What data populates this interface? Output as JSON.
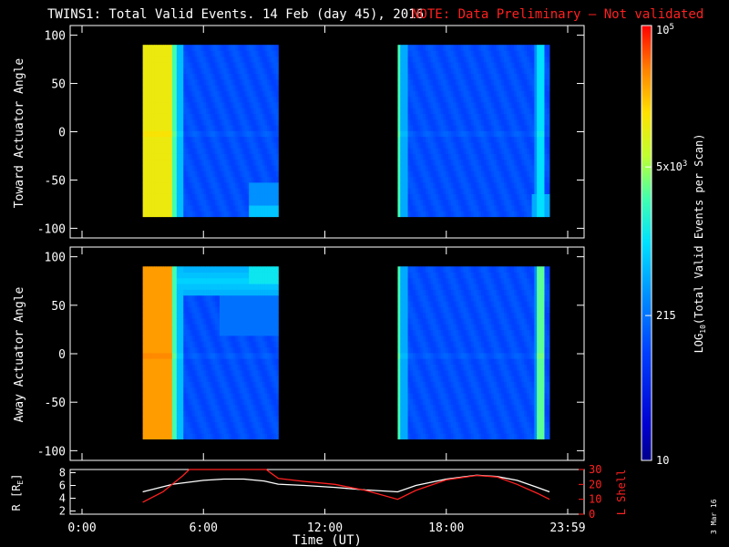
{
  "header": {
    "title": "TWINS1: Total Valid Events. 14 Feb (day  45), 2016",
    "note": "NOTE: Data Preliminary – Not validated",
    "note_color": "#ff2020"
  },
  "stamp": "3 Mar 16",
  "chart_data": [
    {
      "type": "heatmap",
      "panel": "top",
      "ylabel": "Toward Actuator Angle",
      "ylim": [
        -110,
        110
      ],
      "y_ticks": [
        100,
        50,
        0,
        -50,
        -100
      ],
      "x_ticks": [
        "0:00",
        "6:00",
        "12:00",
        "18:00",
        "23:59"
      ],
      "xlim_hours": [
        0,
        24
      ],
      "data_blocks_hours": [
        [
          3.0,
          9.7
        ],
        [
          15.6,
          23.1
        ]
      ],
      "data_angle_range": [
        -88,
        90
      ]
    },
    {
      "type": "heatmap",
      "panel": "bottom",
      "ylabel": "Away Actuator Angle",
      "ylim": [
        -110,
        110
      ],
      "y_ticks": [
        100,
        50,
        0,
        -50,
        -100
      ],
      "x_ticks": [
        "0:00",
        "6:00",
        "12:00",
        "18:00",
        "23:59"
      ],
      "xlim_hours": [
        0,
        24
      ],
      "data_blocks_hours": [
        [
          3.0,
          9.7
        ],
        [
          15.6,
          23.1
        ]
      ],
      "data_angle_range": [
        -88,
        90
      ]
    },
    {
      "type": "line",
      "panel": "orbit",
      "ylabel_left": "R [R",
      "ylabel_left_sub": "E",
      "ylabel_left_end": "]",
      "ylabel_right": "L Shell",
      "ylim_left": [
        1.5,
        8.5
      ],
      "ylim_right": [
        0,
        30
      ],
      "y_ticks_left": [
        8,
        6,
        4,
        2
      ],
      "y_ticks_right": [
        30,
        20,
        10,
        0
      ],
      "xlabel": "Time (UT)",
      "x_ticks": [
        "0:00",
        "6:00",
        "12:00",
        "18:00",
        "23:59"
      ],
      "series": [
        {
          "color": "#ffffff",
          "x": [
            3.0,
            4.5,
            6.0,
            7.0,
            8.0,
            9.0,
            9.7,
            11.0,
            12.5,
            14.0,
            15.6,
            16.5,
            18.0,
            19.5,
            20.5,
            21.5,
            22.5,
            23.1
          ],
          "y": [
            5.0,
            6.2,
            6.8,
            7.0,
            7.0,
            6.7,
            6.2,
            6.0,
            5.7,
            5.3,
            5.0,
            6.0,
            7.0,
            7.6,
            7.4,
            6.8,
            5.7,
            5.0
          ]
        },
        {
          "color": "#ff2020",
          "x": [
            3.0,
            4.0,
            5.0,
            5.3,
            9.1,
            9.3,
            9.7,
            11.0,
            12.5,
            14.0,
            15.6,
            16.5,
            18.0,
            19.5,
            20.5,
            21.5,
            22.5,
            23.1
          ],
          "y": [
            8.0,
            15.0,
            26.0,
            30.0,
            30.0,
            28.0,
            24.0,
            22.0,
            20.0,
            16.0,
            10.0,
            16.0,
            23.0,
            26.0,
            25.0,
            20.0,
            14.0,
            10.0
          ]
        }
      ]
    },
    {
      "type": "colorbar",
      "label": "LOG",
      "label_sub": "10",
      "label_rest": "(Total Valid Events per Scan)",
      "ticks": [
        {
          "base": "10",
          "exp": "5"
        },
        {
          "base": "5x10",
          "exp": "3"
        },
        {
          "base": "215",
          "exp": ""
        },
        {
          "base": "10",
          "exp": ""
        }
      ]
    }
  ]
}
